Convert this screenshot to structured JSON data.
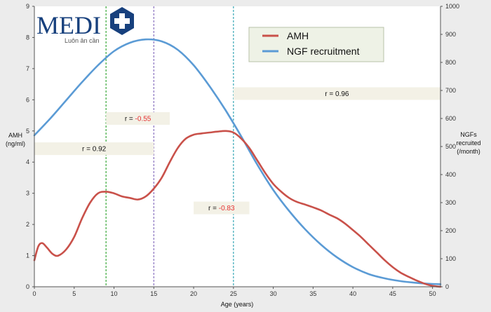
{
  "logo": {
    "word": "MEDI",
    "tagline": "Luôn ân cần"
  },
  "chart_data": {
    "type": "line",
    "xlabel": "Age (years)",
    "ylabel_left": [
      "AMH",
      "(ng/ml)"
    ],
    "ylabel_right": [
      "NGFs",
      "recruited",
      "(/month)"
    ],
    "xlim": [
      0,
      51
    ],
    "ylim_left": [
      0,
      9
    ],
    "ylim_right": [
      0,
      1000
    ],
    "x_ticks": [
      0,
      5,
      10,
      15,
      20,
      25,
      30,
      35,
      40,
      45,
      50
    ],
    "y_left_ticks": [
      0,
      1,
      2,
      3,
      4,
      5,
      6,
      7,
      8,
      9
    ],
    "y_right_ticks": [
      0,
      100,
      200,
      300,
      400,
      500,
      600,
      700,
      800,
      900,
      1000
    ],
    "grid": false,
    "legend_position": "top-center",
    "series": [
      {
        "name": "AMH",
        "axis": "left",
        "color": "#c9514a",
        "x": [
          0,
          0.5,
          1,
          1.6,
          2.3,
          3,
          4,
          5,
          6,
          7,
          8,
          9,
          10,
          11,
          12,
          13,
          14,
          15,
          16,
          17,
          18,
          19,
          20,
          21,
          22,
          23,
          24,
          25,
          26,
          27,
          28,
          29,
          30,
          31,
          32,
          33,
          34,
          35,
          36,
          37,
          38,
          39,
          40,
          41,
          42,
          43,
          44,
          45,
          46,
          47,
          48,
          49,
          50,
          51
        ],
        "values": [
          0.85,
          1.3,
          1.4,
          1.25,
          1.05,
          1.0,
          1.2,
          1.6,
          2.2,
          2.7,
          3.0,
          3.05,
          3.0,
          2.9,
          2.85,
          2.8,
          2.9,
          3.15,
          3.5,
          4.0,
          4.45,
          4.75,
          4.88,
          4.92,
          4.95,
          4.98,
          5.0,
          4.95,
          4.75,
          4.45,
          4.05,
          3.65,
          3.3,
          3.05,
          2.85,
          2.72,
          2.64,
          2.55,
          2.45,
          2.32,
          2.2,
          2.03,
          1.82,
          1.6,
          1.35,
          1.1,
          0.85,
          0.63,
          0.45,
          0.32,
          0.2,
          0.1,
          0.03,
          0.0
        ]
      },
      {
        "name": "NGF recruitment",
        "axis": "right",
        "color": "#5b9bd5",
        "x": [
          0,
          2,
          4,
          6,
          8,
          10,
          12,
          14,
          16,
          18,
          20,
          22,
          24,
          26,
          28,
          30,
          32,
          34,
          36,
          38,
          40,
          42,
          44,
          46,
          48,
          50,
          51
        ],
        "values": [
          540,
          600,
          665,
          730,
          790,
          840,
          870,
          882,
          875,
          845,
          790,
          715,
          630,
          535,
          435,
          345,
          270,
          205,
          150,
          105,
          70,
          45,
          30,
          20,
          14,
          10,
          9
        ]
      }
    ],
    "vlines": [
      {
        "x": 9,
        "color": "#3aa83a"
      },
      {
        "x": 15,
        "color": "#8a72c0"
      },
      {
        "x": 25,
        "color": "#37a7b5"
      }
    ],
    "annotations": [
      {
        "prefix": "r = ",
        "value": "0.92",
        "negative": false,
        "x0": 0,
        "x1": 15,
        "y": 4.43
      },
      {
        "prefix": "r = ",
        "value": "-0.55",
        "negative": true,
        "x0": 9,
        "x1": 17,
        "y": 5.4
      },
      {
        "prefix": "r = ",
        "value": "-0.83",
        "negative": true,
        "x0": 20,
        "x1": 27,
        "y": 2.53
      },
      {
        "prefix": "r = ",
        "value": "0.96",
        "negative": false,
        "x0": 25,
        "x1": 51,
        "y": 6.2
      }
    ]
  }
}
